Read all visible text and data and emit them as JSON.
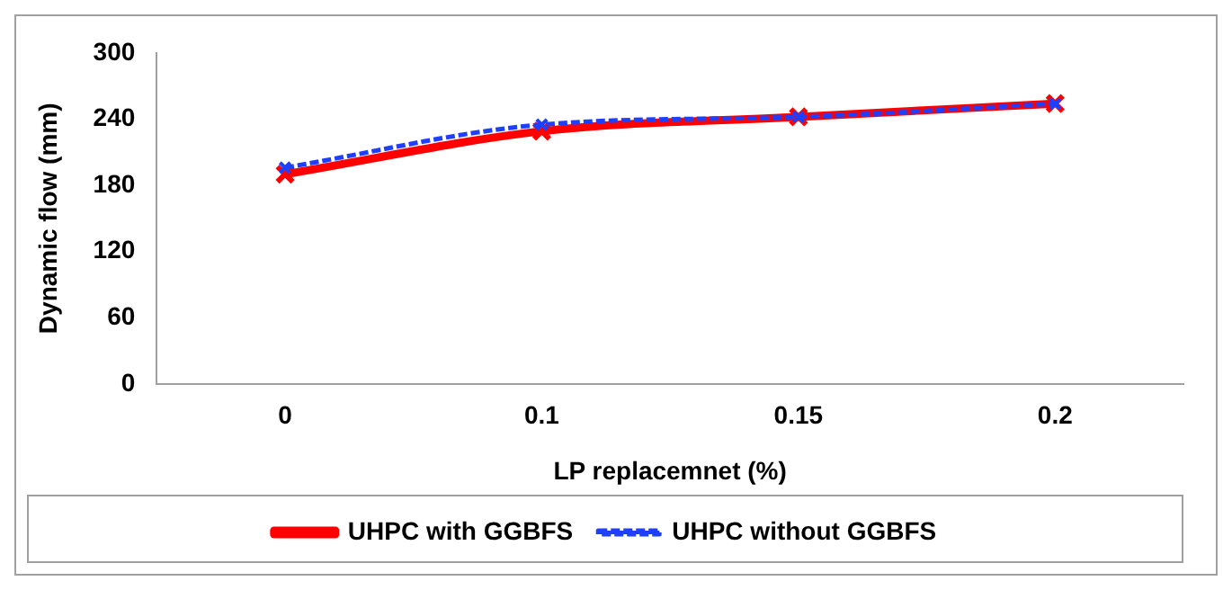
{
  "chart_data": {
    "type": "line",
    "xlabel": "LP replacemnet (%)",
    "ylabel": "Dynamic flow (mm)",
    "categories": [
      "0",
      "0.1",
      "0.15",
      "0.2"
    ],
    "series": [
      {
        "name": "UHPC with GGBFS",
        "color": "#ff0000",
        "values": [
          190,
          229,
          242,
          254
        ],
        "line_style": "solid"
      },
      {
        "name": "UHPC without GGBFS",
        "color": "#1f3fff",
        "values": [
          196,
          235,
          242,
          254
        ],
        "line_style": "dashed"
      }
    ],
    "ylim": [
      0,
      300
    ],
    "yticks": [
      0,
      60,
      120,
      180,
      240,
      300
    ],
    "grid": false,
    "legend": "bottom",
    "marker": "cross"
  }
}
